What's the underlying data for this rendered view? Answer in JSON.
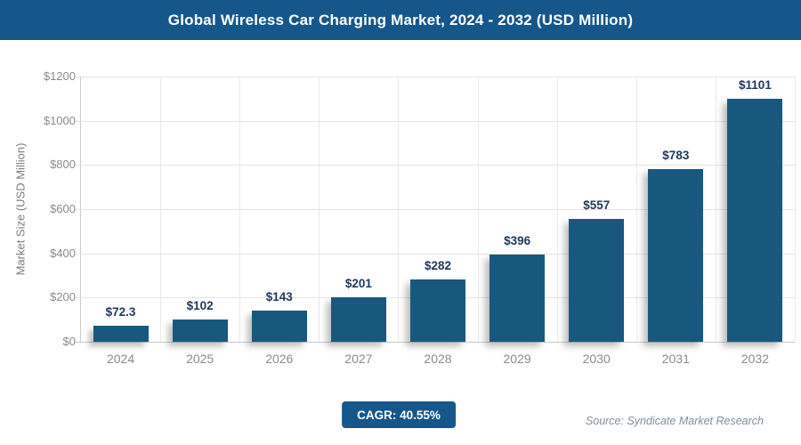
{
  "header": {
    "title": "Global Wireless Car Charging Market, 2024 - 2032 (USD Million)",
    "bg_color": "#15578B",
    "text_color": "#FFFFFF"
  },
  "chart_data": {
    "type": "bar",
    "title": "Global Wireless Car Charging Market, 2024 - 2032 (USD Million)",
    "categories": [
      "2024",
      "2025",
      "2026",
      "2027",
      "2028",
      "2029",
      "2030",
      "2031",
      "2032"
    ],
    "values": [
      72.3,
      102,
      143,
      201,
      282,
      396,
      557,
      783,
      1101
    ],
    "bar_labels": [
      "$72.3",
      "$102",
      "$143",
      "$201",
      "$282",
      "$396",
      "$557",
      "$783",
      "$1101"
    ],
    "xlabel": "",
    "ylabel": "Market Size (USD Million)",
    "ylim": [
      0,
      1200
    ],
    "ytick_step": 200,
    "ytick_labels": [
      "$0",
      "$200",
      "$400",
      "$600",
      "$800",
      "$1000",
      "$1200"
    ],
    "grid": true,
    "legend": false,
    "bar_color": "#19587E",
    "value_label_color": "#20395C",
    "axis_label_color": "#8A8A8A"
  },
  "footer": {
    "cagr_label": "CAGR: 40.55%",
    "badge_color": "#15578B",
    "source": "Source: Syndicate Market Research"
  }
}
